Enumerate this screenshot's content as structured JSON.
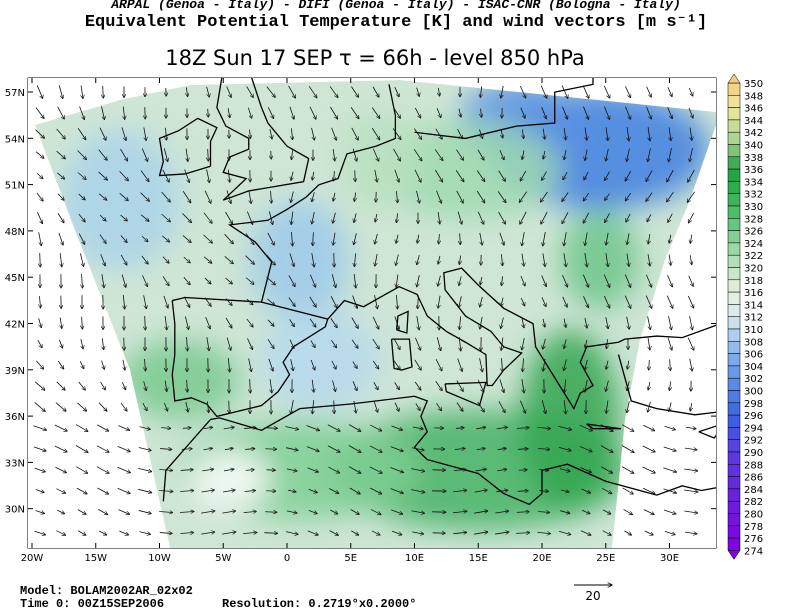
{
  "header": {
    "credits": "ARPAL (Genoa - Italy)  -  DIFI (Genoa - Italy)  -  ISAC-CNR (Bologna - Italy)",
    "title": "Equivalent Potential Temperature [K] and wind vectors [m s⁻¹]",
    "subtitle": "18Z Sun 17 SEP  τ = 66h  -  level 850 hPa"
  },
  "map": {
    "latitude_labels": [
      "57N",
      "54N",
      "51N",
      "48N",
      "45N",
      "42N",
      "39N",
      "36N",
      "33N",
      "30N"
    ],
    "longitude_labels": [
      "20W",
      "15W",
      "10W",
      "5W",
      "0",
      "5E",
      "10E",
      "15E",
      "20E",
      "25E",
      "30E"
    ]
  },
  "colorbar": {
    "labels": [
      350,
      348,
      346,
      344,
      342,
      340,
      338,
      336,
      334,
      332,
      330,
      328,
      326,
      324,
      322,
      320,
      318,
      316,
      314,
      312,
      310,
      308,
      306,
      304,
      302,
      300,
      298,
      296,
      294,
      292,
      290,
      288,
      286,
      284,
      282,
      280,
      278,
      276,
      274
    ]
  },
  "footer": {
    "model": "Model: BOLAM2002AR_02x02",
    "time": "Time 0: 00Z15SEP2006",
    "resolution": "Resolution: 0.2719°x0.2000°",
    "reference_vector": "20"
  }
}
